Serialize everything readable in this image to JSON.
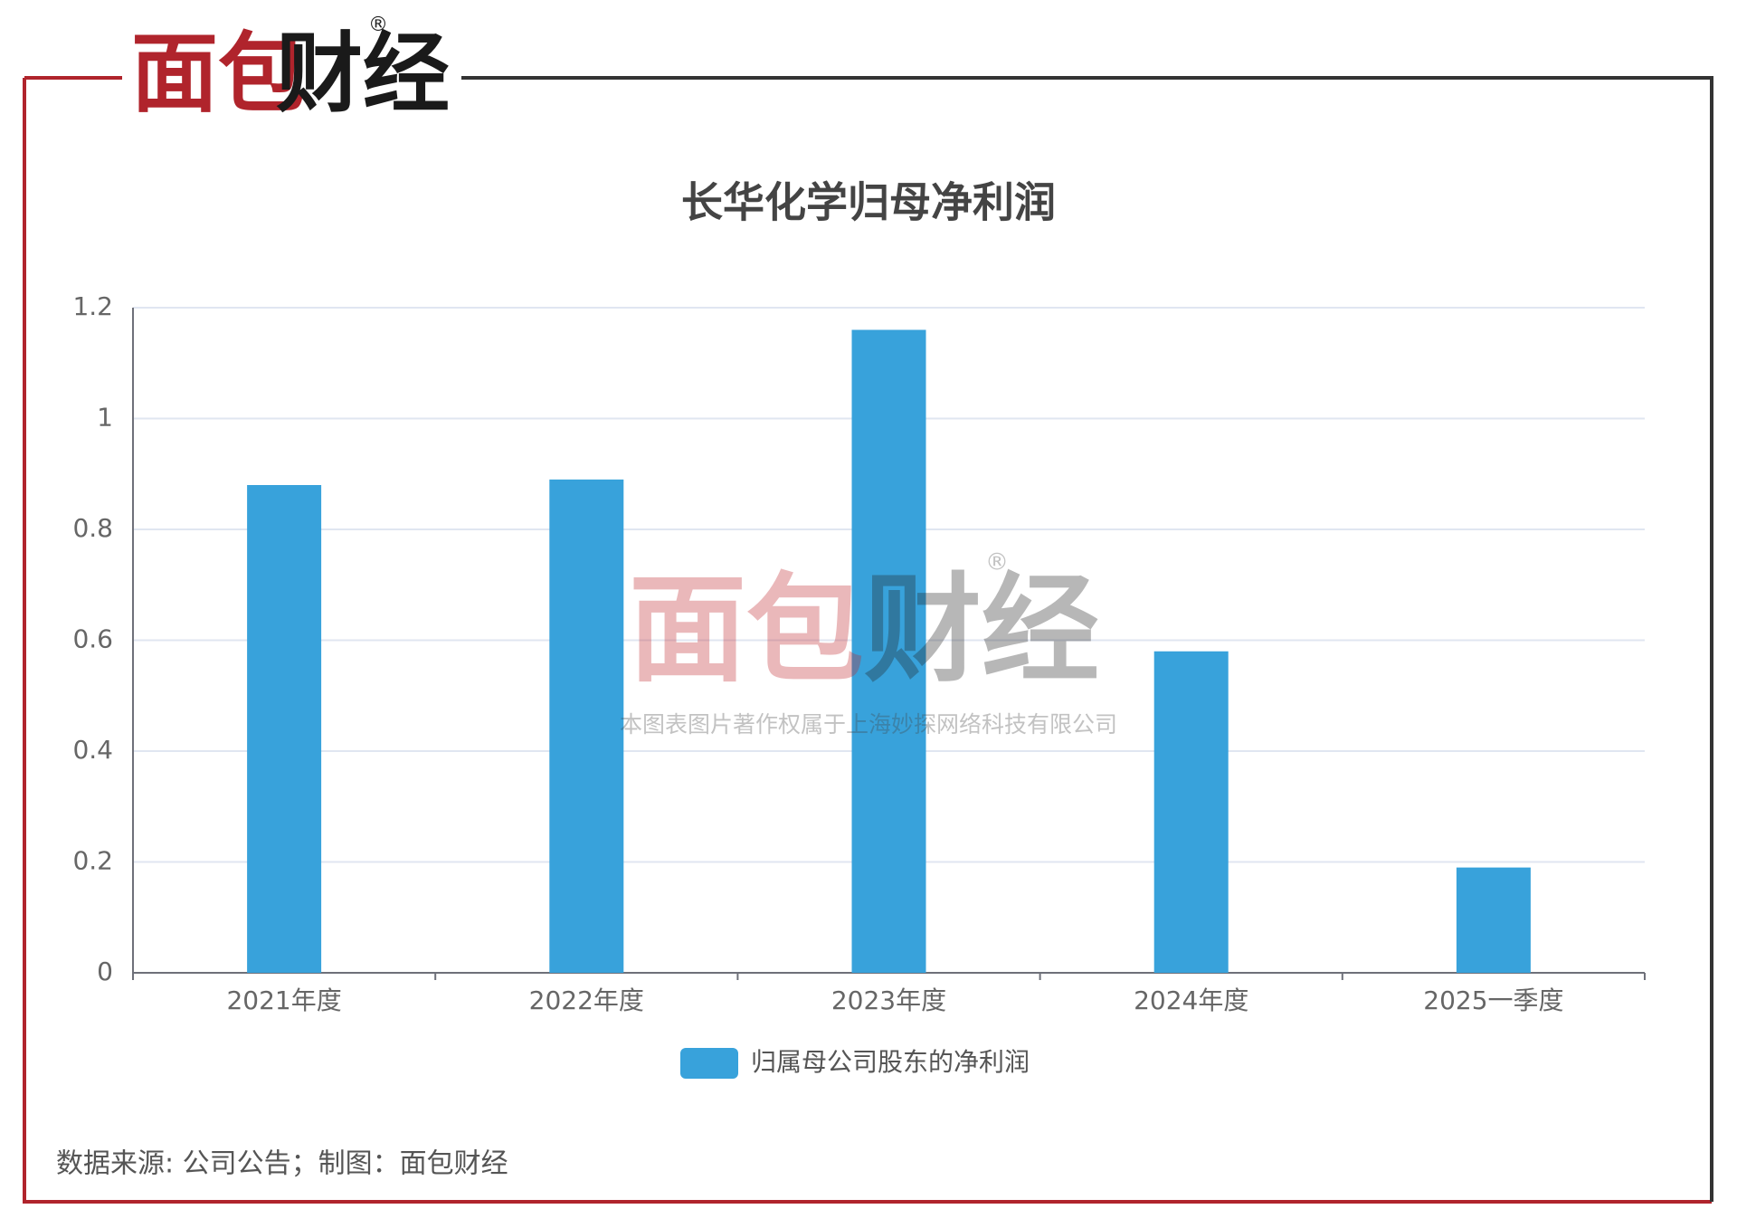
{
  "header": {
    "logo_red": "面包",
    "logo_dark": "财经",
    "registered": "®"
  },
  "chart_data": {
    "type": "bar",
    "title": "长华化学归母净利润",
    "categories": [
      "2021年度",
      "2022年度",
      "2023年度",
      "2024年度",
      "2025一季度"
    ],
    "series": [
      {
        "name": "归属母公司股东的净利润",
        "color": "#38a2db",
        "values": [
          0.88,
          0.89,
          1.16,
          0.58,
          0.19
        ]
      }
    ],
    "ylim": [
      0,
      1.2
    ],
    "yticks": [
      0,
      0.2,
      0.4,
      0.6,
      0.8,
      1,
      1.2
    ],
    "grid": true,
    "legend": "bottom"
  },
  "watermark": {
    "logo_red": "面包",
    "logo_dark": "财经",
    "registered": "®",
    "text": "本图表图片著作权属于上海妙探网络科技有限公司"
  },
  "footer": {
    "source": "数据来源: 公司公告；制图：面包财经"
  }
}
